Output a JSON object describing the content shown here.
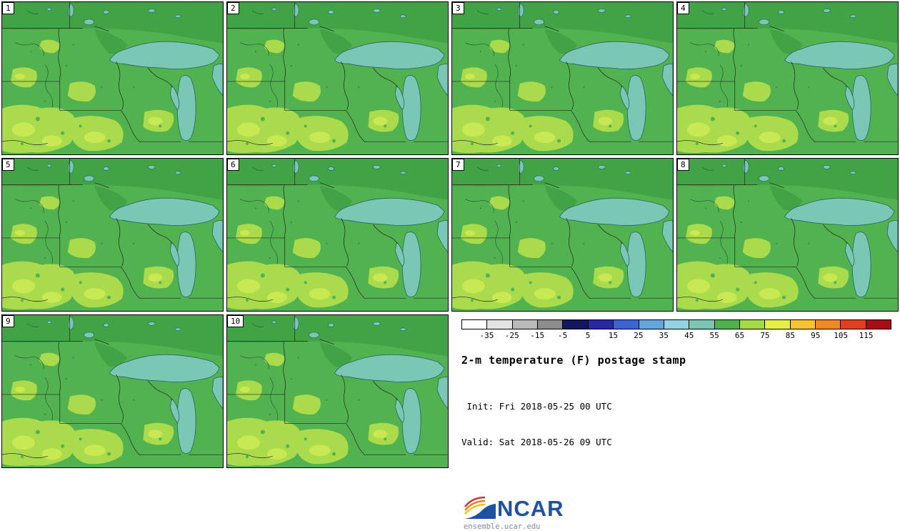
{
  "panels": [
    {
      "number": "1"
    },
    {
      "number": "2"
    },
    {
      "number": "3"
    },
    {
      "number": "4"
    },
    {
      "number": "5"
    },
    {
      "number": "6"
    },
    {
      "number": "7"
    },
    {
      "number": "8"
    },
    {
      "number": "9"
    },
    {
      "number": "10"
    }
  ],
  "colorbar": {
    "tick_labels": [
      "-35",
      "-25",
      "-15",
      "-5",
      "5",
      "15",
      "25",
      "35",
      "45",
      "55",
      "65",
      "75",
      "85",
      "95",
      "105",
      "115"
    ],
    "colors": [
      "#ffffff",
      "#e3e3e3",
      "#b9b9b9",
      "#8c8c8c",
      "#15155e",
      "#2828a0",
      "#3a64d0",
      "#66a4da",
      "#93d2e2",
      "#7ac6b3",
      "#4fb04e",
      "#a4d94b",
      "#e6ee4a",
      "#f6c332",
      "#ef8824",
      "#e0401f",
      "#a50f15"
    ]
  },
  "legend": {
    "title": "2-m temperature (F) postage stamp",
    "init_line": " Init: Fri 2018-05-25 00 UTC",
    "valid_line": "Valid: Sat 2018-05-26 09 UTC"
  },
  "footer": {
    "logo_text": "NCAR",
    "site": "ensemble.ucar.edu"
  },
  "map_colors": {
    "base_green": "#52b24f",
    "dark_green": "#41a246",
    "light_green": "#a9db4c",
    "pale_green": "#c8e954",
    "lake_teal": "#7bc7b6",
    "ncar_blue": "#1d52a3"
  }
}
